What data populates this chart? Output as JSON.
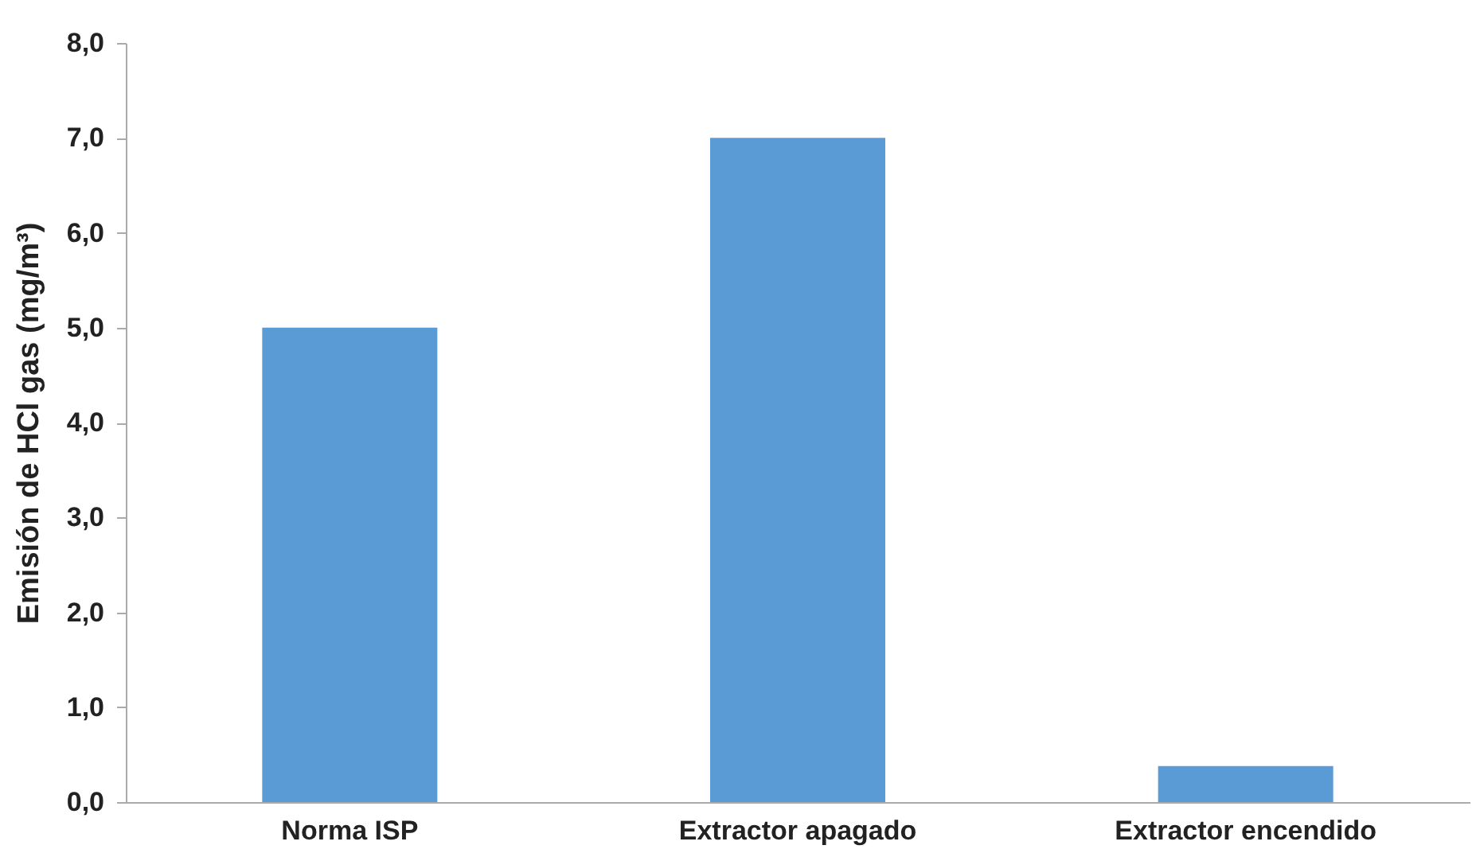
{
  "chart_data": {
    "type": "bar",
    "ylabel": "Emisión de HCl gas (mg/m³)",
    "categories": [
      "Norma ISP",
      "Extractor apagado",
      "Extractor encendido"
    ],
    "values": [
      5.0,
      7.0,
      0.38
    ],
    "color": "#5b9bd5",
    "ylim": [
      0,
      8
    ],
    "yticks": [
      {
        "value": 0,
        "label": "0,0"
      },
      {
        "value": 1,
        "label": "1,0"
      },
      {
        "value": 2,
        "label": "2,0"
      },
      {
        "value": 3,
        "label": "3,0"
      },
      {
        "value": 4,
        "label": "4,0"
      },
      {
        "value": 5,
        "label": "5,0"
      },
      {
        "value": 6,
        "label": "6,0"
      },
      {
        "value": 7,
        "label": "7,0"
      },
      {
        "value": 8,
        "label": "8,0"
      }
    ],
    "grid": false
  }
}
